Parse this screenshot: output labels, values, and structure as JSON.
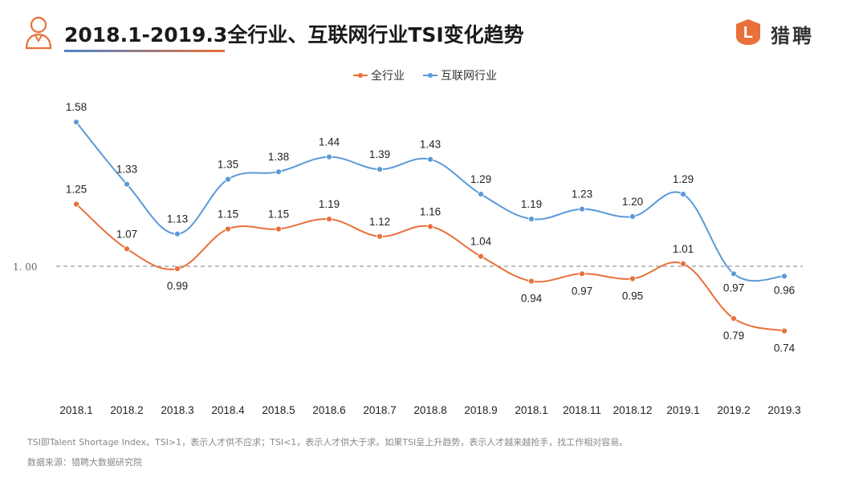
{
  "header": {
    "title": "2018.1-2019.3全行业、互联网行业TSI变化趋势",
    "title_color": "#1a1a1a",
    "accent_color": "#e8703a",
    "underline_gradient": [
      "#4a86c8",
      "#e8703a"
    ]
  },
  "logo": {
    "text": "猎聘",
    "mark_letter": "L",
    "color": "#e8703a"
  },
  "chart_data": {
    "type": "line",
    "categories": [
      "2018.1",
      "2018.2",
      "2018.3",
      "2018.4",
      "2018.5",
      "2018.6",
      "2018.7",
      "2018.8",
      "2018.9",
      "2018.1",
      "2018.11",
      "2018.12",
      "2019.1",
      "2019.2",
      "2019.3"
    ],
    "series": [
      {
        "name": "全行业",
        "color": "#e8703a",
        "values": [
          1.25,
          1.07,
          0.99,
          1.15,
          1.15,
          1.19,
          1.12,
          1.16,
          1.04,
          0.94,
          0.97,
          0.95,
          1.01,
          0.79,
          0.74
        ]
      },
      {
        "name": "互联网行业",
        "color": "#5a9ad8",
        "values": [
          1.58,
          1.33,
          1.13,
          1.35,
          1.38,
          1.44,
          1.39,
          1.43,
          1.29,
          1.19,
          1.23,
          1.2,
          1.29,
          0.97,
          0.96
        ]
      }
    ],
    "value_labels": {
      "全行业": [
        "1.25",
        "1.07",
        "0.99",
        "1.15",
        "1.15",
        "1.19",
        "1.12",
        "1.16",
        "1.04",
        "0.94",
        "0.97",
        "0.95",
        "1.01",
        "0.79",
        "0.74"
      ],
      "互联网行业": [
        "1.58",
        "1.33",
        "1.13",
        "1.35",
        "1.38",
        "1.44",
        "1.39",
        "1.43",
        "1.29",
        "1.19",
        "1.23",
        "1.20",
        "1.29",
        "0.97",
        "0.96"
      ]
    },
    "reference_line": {
      "value": 1.0,
      "label": "1. 00",
      "style": "dashed"
    },
    "ylim": [
      0.6,
      1.72
    ],
    "legend_position": "top-center",
    "grid": false,
    "title": "",
    "xlabel": "",
    "ylabel": ""
  },
  "footer": {
    "note": "TSI即Talent Shortage Index。TSI>1，表示人才供不应求；TSI<1，表示人才供大于求。如果TSI呈上升趋势，表示人才越来越抢手，找工作相对容易。",
    "source": "数据来源：猎聘大数据研究院"
  }
}
